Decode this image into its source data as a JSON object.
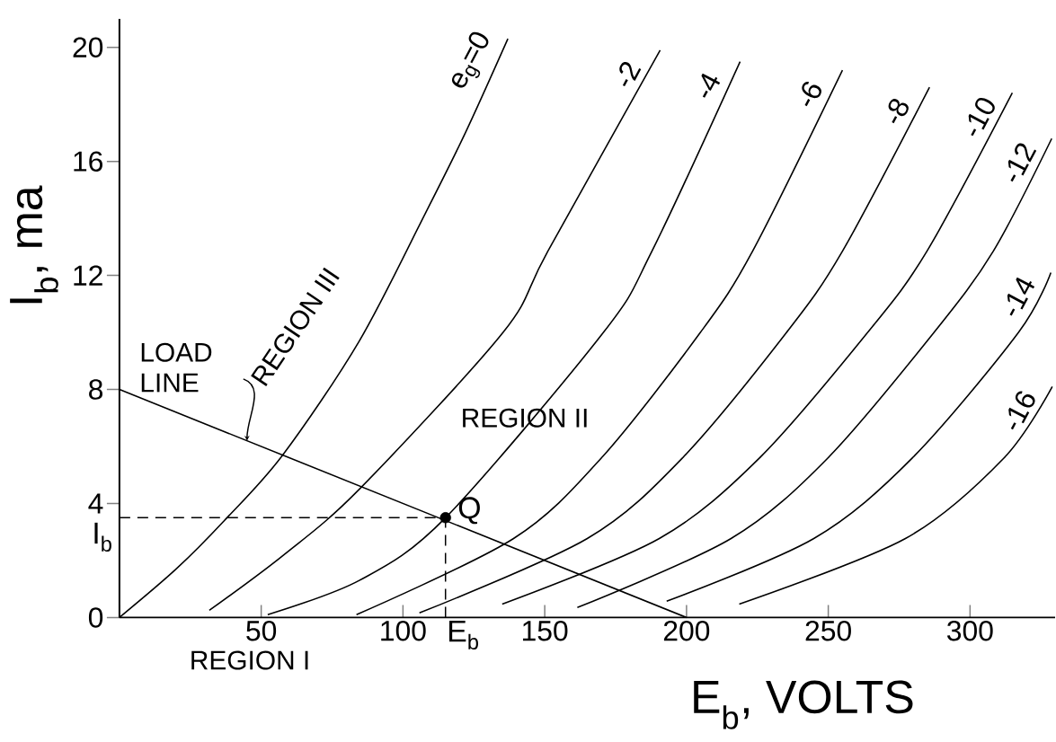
{
  "chart_data": {
    "type": "line",
    "xlabel": "E$_{b}$, VOLTS",
    "ylabel": "I$_{b}$, ma",
    "xlim": [
      0,
      330
    ],
    "ylim": [
      0,
      21
    ],
    "xticks": [
      {
        "value": 0,
        "label": null
      },
      50,
      100,
      150,
      200,
      250,
      300
    ],
    "yticks": [
      0,
      4,
      8,
      12,
      16,
      20
    ],
    "color": "#000000",
    "series": [
      {
        "name": "e$_{g}$=0",
        "x": [
          0,
          20,
          37,
          57.6,
          84.6,
          108,
          122,
          137
        ],
        "values": [
          0,
          1.7,
          3.4,
          5.7,
          9.7,
          14.2,
          17,
          20.3
        ]
      },
      {
        "name": "-2",
        "x": [
          31.7,
          58,
          84.6,
          135.3,
          151.1,
          190.7
        ],
        "values": [
          0.25,
          2.2,
          4.5,
          10,
          12.85,
          19.9
        ]
      },
      {
        "name": "-4",
        "x": [
          52.3,
          84.6,
          115,
          170.7,
          187.8,
          218.9
        ],
        "values": [
          0.1,
          1.3,
          3.5,
          10,
          12.85,
          19.5
        ]
      },
      {
        "name": "-6",
        "x": [
          83.6,
          139,
          170,
          204.9,
          223.3,
          255
        ],
        "values": [
          0.1,
          2.77,
          5.6,
          10,
          12.85,
          19.2
        ]
      },
      {
        "name": "-8",
        "x": [
          105.8,
          165,
          198.6,
          235.3,
          255,
          285.7
        ],
        "values": [
          0.16,
          2.77,
          5.6,
          10,
          12.85,
          18.6
        ]
      },
      {
        "name": "-10",
        "x": [
          135,
          190.4,
          225.8,
          263.9,
          284.8,
          314.9
        ],
        "values": [
          0.47,
          2.77,
          5.6,
          10,
          12.85,
          18.4
        ]
      },
      {
        "name": "-12",
        "x": [
          161.5,
          215.7,
          249.9,
          287.3,
          308.2,
          328.8
        ],
        "values": [
          0.35,
          2.77,
          5.6,
          10,
          12.85,
          16.8
        ]
      },
      {
        "name": "-14",
        "x": [
          193,
          244.9,
          279.7,
          317.1,
          328.5
        ],
        "values": [
          0.57,
          2.77,
          5.6,
          10,
          12.1
        ]
      },
      {
        "name": "-16",
        "x": [
          218.6,
          277.2,
          312,
          329
        ],
        "values": [
          0.47,
          2.77,
          5.6,
          8.1
        ]
      },
      {
        "x": [
          0,
          200
        ],
        "values": [
          8,
          0
        ]
      },
      {
        "type": "scatter",
        "marker": "circle",
        "x": [
          115
        ],
        "values": [
          3.5
        ]
      }
    ],
    "ref_lines": [
      {
        "axis": "x",
        "value": 115,
        "label": "E$_{b}$",
        "line_style": "dashed"
      },
      {
        "axis": "y",
        "value": 3.5,
        "label": "I$_{b}$",
        "line_style": "dashed"
      }
    ],
    "annotations": [
      {
        "text": "LOAD LINE",
        "x": 45,
        "y": 6.2
      },
      "REGION III",
      "REGION II",
      "REGION I",
      {
        "text": "Q",
        "x": 115,
        "y": 3.5
      }
    ],
    "grid": false
  }
}
